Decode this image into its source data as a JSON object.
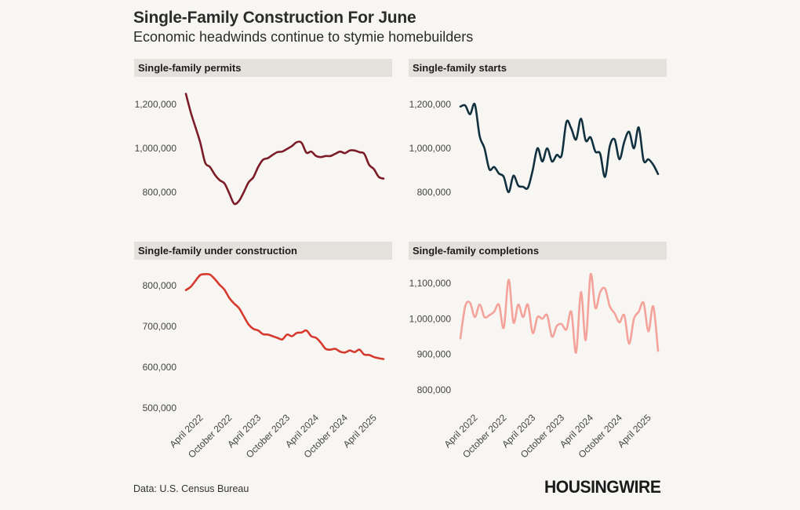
{
  "header": {
    "title": "Single-Family Construction For June",
    "subtitle": "Economic headwinds continue to stymie homebuilders"
  },
  "footer": {
    "source": "Data: U.S. Census Bureau",
    "logo": "HOUSINGWIRE"
  },
  "x_ticks": [
    "April 2022",
    "October 2022",
    "April 2023",
    "October 2023",
    "April 2024",
    "October 2024",
    "April 2025"
  ],
  "chart_data": [
    {
      "type": "line",
      "title": "Single-family permits",
      "color": "#7b1c28",
      "y_ticks": [
        {
          "value": 800000,
          "label": "800,000"
        },
        {
          "value": 1000000,
          "label": "1,000,000"
        },
        {
          "value": 1200000,
          "label": "1,200,000"
        }
      ],
      "ylim": [
        700000,
        1250000
      ],
      "x_start": "January 2022",
      "values": [
        1248000,
        1165000,
        1095000,
        1025000,
        935000,
        915000,
        880000,
        855000,
        840000,
        795000,
        748000,
        760000,
        800000,
        845000,
        868000,
        915000,
        948000,
        955000,
        970000,
        983000,
        985000,
        997000,
        1010000,
        1028000,
        1025000,
        980000,
        985000,
        965000,
        960000,
        965000,
        965000,
        975000,
        985000,
        978000,
        990000,
        990000,
        982000,
        975000,
        925000,
        905000,
        870000,
        862000
      ]
    },
    {
      "type": "line",
      "title": "Single-family starts",
      "color": "#12313f",
      "y_ticks": [
        {
          "value": 800000,
          "label": "800,000"
        },
        {
          "value": 1000000,
          "label": "1,000,000"
        },
        {
          "value": 1200000,
          "label": "1,200,000"
        }
      ],
      "ylim": [
        700000,
        1250000
      ],
      "x_start": "January 2022",
      "values": [
        1190000,
        1195000,
        1155000,
        1200000,
        1055000,
        1000000,
        905000,
        915000,
        885000,
        870000,
        800000,
        875000,
        830000,
        825000,
        820000,
        900000,
        1000000,
        940000,
        1000000,
        940000,
        970000,
        968000,
        1120000,
        1090000,
        1040000,
        1135000,
        1035000,
        1050000,
        985000,
        975000,
        870000,
        1010000,
        1040000,
        950000,
        1030000,
        1075000,
        1000000,
        1095000,
        945000,
        950000,
        925000,
        883000
      ]
    },
    {
      "type": "line",
      "title": "Single-family under construction",
      "color": "#d63a2e",
      "y_ticks": [
        {
          "value": 500000,
          "label": "500,000"
        },
        {
          "value": 600000,
          "label": "600,000"
        },
        {
          "value": 700000,
          "label": "700,000"
        },
        {
          "value": 800000,
          "label": "800,000"
        }
      ],
      "ylim": [
        490000,
        850000
      ],
      "x_start": "January 2022",
      "values": [
        789000,
        797000,
        812000,
        826000,
        828000,
        827000,
        816000,
        802000,
        790000,
        770000,
        756000,
        745000,
        725000,
        705000,
        694000,
        690000,
        681000,
        680000,
        676000,
        672000,
        668000,
        680000,
        676000,
        684000,
        685000,
        690000,
        676000,
        672000,
        660000,
        645000,
        643000,
        645000,
        638000,
        636000,
        641000,
        637000,
        643000,
        631000,
        630000,
        625000,
        622000,
        620000
      ]
    },
    {
      "type": "line",
      "title": "Single-family completions",
      "color": "#f4a39b",
      "y_ticks": [
        {
          "value": 800000,
          "label": "800,000"
        },
        {
          "value": 900000,
          "label": "900,000"
        },
        {
          "value": 1000000,
          "label": "1,000,000"
        },
        {
          "value": 1100000,
          "label": "1,100,000"
        }
      ],
      "ylim": [
        760000,
        1140000
      ],
      "x_start": "January 2022",
      "values": [
        945000,
        1035000,
        1045000,
        1005000,
        1040000,
        1005000,
        1010000,
        1020000,
        1040000,
        975000,
        1110000,
        990000,
        1040000,
        1005000,
        1040000,
        960000,
        1005000,
        1000000,
        1010000,
        950000,
        980000,
        985000,
        970000,
        1020000,
        905000,
        1075000,
        940000,
        1125000,
        1030000,
        1075000,
        1085000,
        1035000,
        1015000,
        990000,
        1010000,
        930000,
        1000000,
        1020000,
        1045000,
        965000,
        1035000,
        910000
      ]
    }
  ]
}
